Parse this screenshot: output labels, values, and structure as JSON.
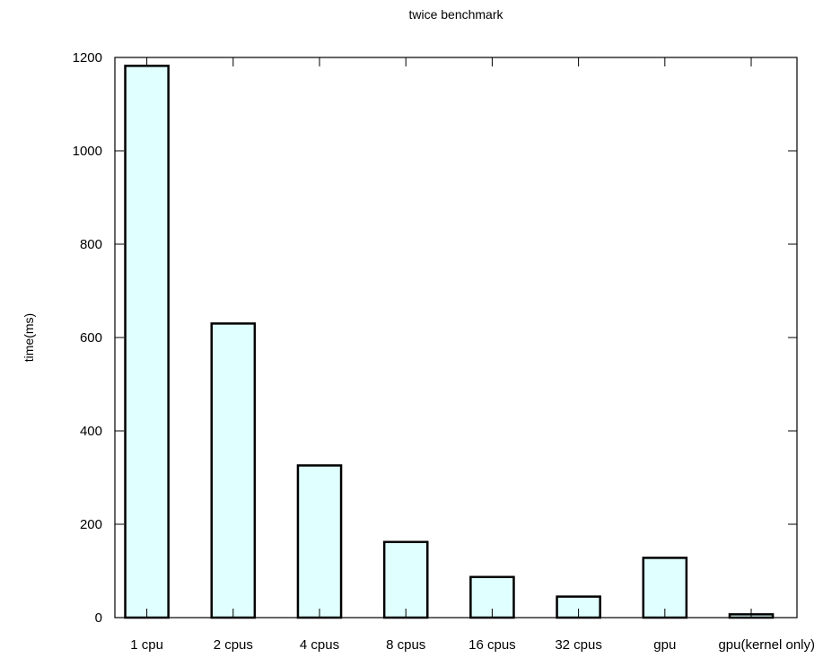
{
  "chart_data": {
    "type": "bar",
    "title": "twice benchmark",
    "xlabel": "",
    "ylabel": "time(ms)",
    "ylim": [
      0,
      1200
    ],
    "yticks": [
      "0",
      "200",
      "400",
      "600",
      "800",
      "1000",
      "1200"
    ],
    "categories": [
      "1 cpu",
      "2 cpus",
      "4 cpus",
      "8 cpus",
      "16 cpus",
      "32 cpus",
      "gpu",
      "gpu(kernel only)"
    ],
    "values": [
      1182,
      630,
      326,
      162,
      87,
      45,
      128,
      7
    ],
    "grid": false,
    "legend": "none",
    "colors": {
      "bar_fill": "#e0ffff",
      "bar_stroke": "#000000",
      "axis": "#000000"
    }
  }
}
